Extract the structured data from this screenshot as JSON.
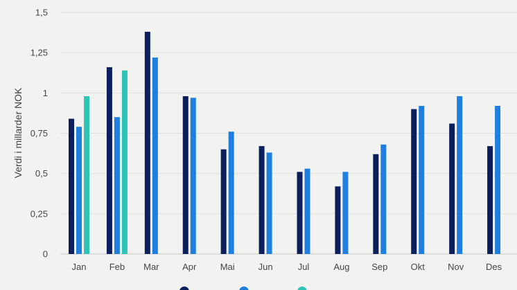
{
  "chart_data": {
    "type": "bar",
    "ylabel": "Verdi i millarder NOK",
    "xlabel": "",
    "ylim": [
      0,
      1.5
    ],
    "yticks": [
      0,
      0.25,
      0.5,
      0.75,
      1,
      1.25,
      1.5
    ],
    "ytick_labels": [
      "0",
      "0,25",
      "0,5",
      "0,75",
      "1",
      "1,25",
      "1,5"
    ],
    "grid": true,
    "legend_position": "bottom",
    "categories": [
      "Jan",
      "Feb",
      "Mar",
      "Apr",
      "Mai",
      "Jun",
      "Jul",
      "Aug",
      "Sep",
      "Okt",
      "Nov",
      "Des"
    ],
    "series": [
      {
        "color": "#0b1f5c",
        "values": [
          0.84,
          1.16,
          1.38,
          0.98,
          0.65,
          0.67,
          0.51,
          0.42,
          0.62,
          0.9,
          0.81,
          0.67
        ]
      },
      {
        "color": "#1f7fe0",
        "values": [
          0.79,
          0.85,
          1.22,
          0.97,
          0.76,
          0.63,
          0.53,
          0.51,
          0.68,
          0.92,
          0.98,
          0.92
        ]
      },
      {
        "color": "#2ec4b6",
        "values": [
          0.98,
          1.14,
          null,
          null,
          null,
          null,
          null,
          null,
          null,
          null,
          null,
          null
        ]
      }
    ]
  }
}
